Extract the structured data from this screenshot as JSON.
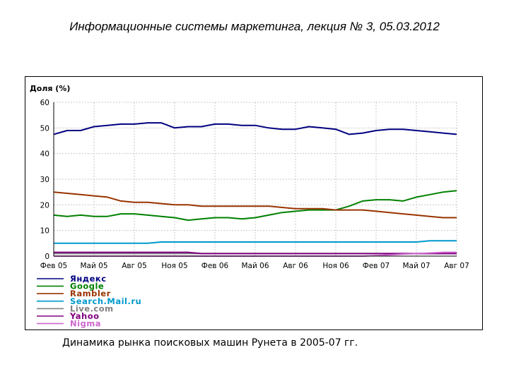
{
  "header": {
    "title": "Информационные системы маркетинга, лекция № 3, 05.03.2012"
  },
  "caption": "Динамика рынка поисковых машин Рунета в 2005-07 гг.",
  "chart_data": {
    "type": "line",
    "ylabel": "Доля (%)",
    "ylim": [
      0,
      60
    ],
    "yticks": [
      0,
      10,
      20,
      30,
      40,
      50,
      60
    ],
    "grid": true,
    "legend_position": "bottom",
    "x_tick_labels": [
      "Фев 05",
      "Май 05",
      "Авг 05",
      "Ноя 05",
      "Фев 06",
      "Май 06",
      "Авг 06",
      "Ноя 06",
      "Фев 07",
      "Май 07",
      "Авг 07"
    ],
    "x": [
      "2005-02",
      "2005-03",
      "2005-04",
      "2005-05",
      "2005-06",
      "2005-07",
      "2005-08",
      "2005-09",
      "2005-10",
      "2005-11",
      "2005-12",
      "2006-01",
      "2006-02",
      "2006-03",
      "2006-04",
      "2006-05",
      "2006-06",
      "2006-07",
      "2006-08",
      "2006-09",
      "2006-10",
      "2006-11",
      "2006-12",
      "2007-01",
      "2007-02",
      "2007-03",
      "2007-04",
      "2007-05",
      "2007-06",
      "2007-07",
      "2007-08"
    ],
    "series": [
      {
        "name": "Яндекс",
        "color": "#000080",
        "values": [
          47.5,
          49,
          49,
          50.5,
          51,
          51.5,
          51.5,
          52,
          52,
          50,
          50.5,
          50.5,
          51.5,
          51.5,
          51,
          51,
          50,
          49.5,
          49.5,
          50.5,
          50,
          49.5,
          47.5,
          48,
          49,
          49.5,
          49.5,
          49,
          48.5,
          48,
          47.5
        ]
      },
      {
        "name": "Google",
        "color": "#008000",
        "values": [
          16,
          15.5,
          16,
          15.5,
          15.5,
          16.5,
          16.5,
          16,
          15.5,
          15,
          14,
          14.5,
          15,
          15,
          14.5,
          15,
          16,
          17,
          17.5,
          18,
          18,
          18,
          19.5,
          21.5,
          22,
          22,
          21.5,
          23,
          24,
          25,
          25.5
        ]
      },
      {
        "name": "Rambler",
        "color": "#993300",
        "values": [
          25,
          24.5,
          24,
          23.5,
          23,
          21.5,
          21,
          21,
          20.5,
          20,
          20,
          19.5,
          19.5,
          19.5,
          19.5,
          19.5,
          19.5,
          19,
          18.5,
          18.5,
          18.5,
          18,
          18,
          18,
          17.5,
          17,
          16.5,
          16,
          15.5,
          15,
          15
        ]
      },
      {
        "name": "Search.Mail.ru",
        "color": "#0099cc",
        "values": [
          5,
          5,
          5,
          5,
          5,
          5,
          5,
          5,
          5.5,
          5.5,
          5.5,
          5.5,
          5.5,
          5.5,
          5.5,
          5.5,
          5.5,
          5.5,
          5.5,
          5.5,
          5.5,
          5.5,
          5.5,
          5.5,
          5.5,
          5.5,
          5.5,
          5.5,
          6,
          6,
          6
        ]
      },
      {
        "name": "Live.com",
        "color": "#808080",
        "values": [
          1,
          1,
          1,
          1,
          1,
          1,
          1,
          1,
          1,
          1,
          1,
          1,
          1,
          1,
          1,
          1,
          1,
          1,
          1,
          1,
          1,
          1,
          1,
          1,
          1,
          1,
          1,
          1,
          1,
          1,
          1
        ]
      },
      {
        "name": "Yahoo",
        "color": "#800080",
        "values": [
          1.5,
          1.5,
          1.5,
          1.5,
          1.5,
          1.5,
          1.5,
          1.5,
          1.5,
          1.5,
          1.5,
          1,
          1,
          1,
          1,
          1,
          1,
          1,
          1,
          1,
          1,
          1,
          1,
          1,
          1,
          1,
          1,
          1,
          1,
          1,
          1
        ]
      },
      {
        "name": "Nigma",
        "color": "#cc66cc",
        "values": [
          0,
          0,
          0,
          0,
          0,
          0,
          0,
          0,
          0,
          0,
          0,
          0,
          0,
          0,
          0,
          0,
          0,
          0,
          0,
          0,
          0,
          0,
          0,
          0,
          0.2,
          0.5,
          0.8,
          1,
          1.2,
          1.5,
          1.5
        ]
      }
    ]
  }
}
